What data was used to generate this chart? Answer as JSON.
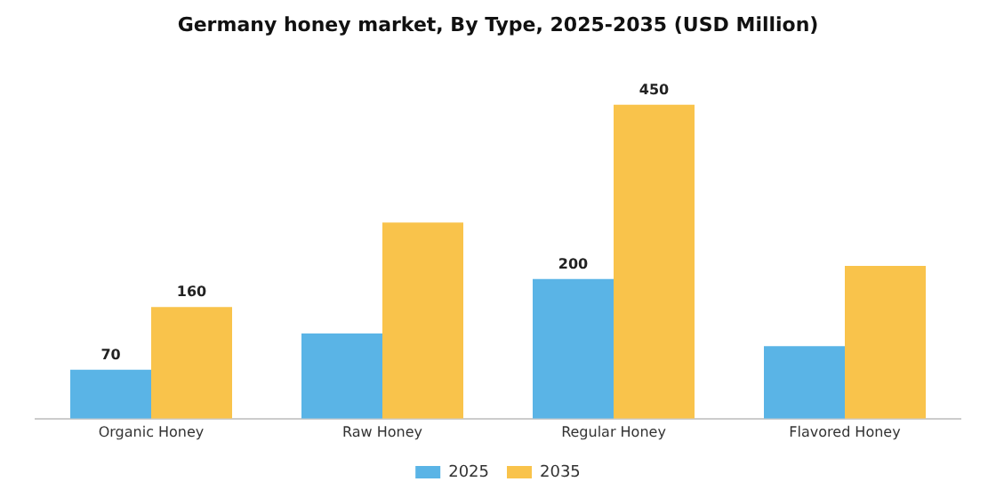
{
  "chart_data": {
    "type": "bar",
    "title": "Germany honey market, By Type, 2025-2035 (USD Million)",
    "categories": [
      "Organic Honey",
      "Raw Honey",
      "Regular Honey",
      "Flavored Honey"
    ],
    "series": [
      {
        "name": "2025",
        "color": "#5ab4e6",
        "values": [
          70,
          122,
          200,
          104
        ],
        "value_labels": [
          "70",
          null,
          "200",
          null
        ]
      },
      {
        "name": "2035",
        "color": "#f9c34b",
        "values": [
          160,
          281,
          450,
          219
        ],
        "value_labels": [
          "160",
          null,
          "450",
          null
        ]
      }
    ],
    "legend": "bottom",
    "grid": false
  }
}
